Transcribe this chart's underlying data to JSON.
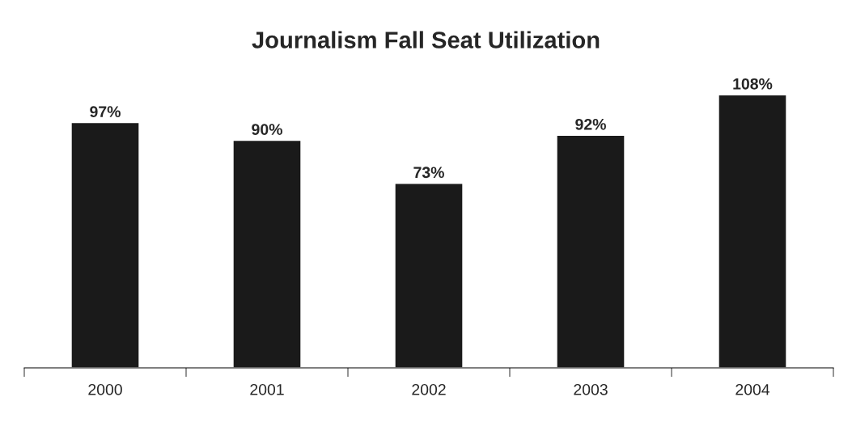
{
  "chart_data": {
    "type": "bar",
    "title": "Journalism Fall Seat Utilization",
    "categories": [
      "2000",
      "2001",
      "2002",
      "2003",
      "2004"
    ],
    "values": [
      97,
      90,
      73,
      92,
      108
    ],
    "value_labels": [
      "97%",
      "90%",
      "73%",
      "92%",
      "108%"
    ],
    "color": "#1a1a1a",
    "grid": false,
    "legend": false
  }
}
